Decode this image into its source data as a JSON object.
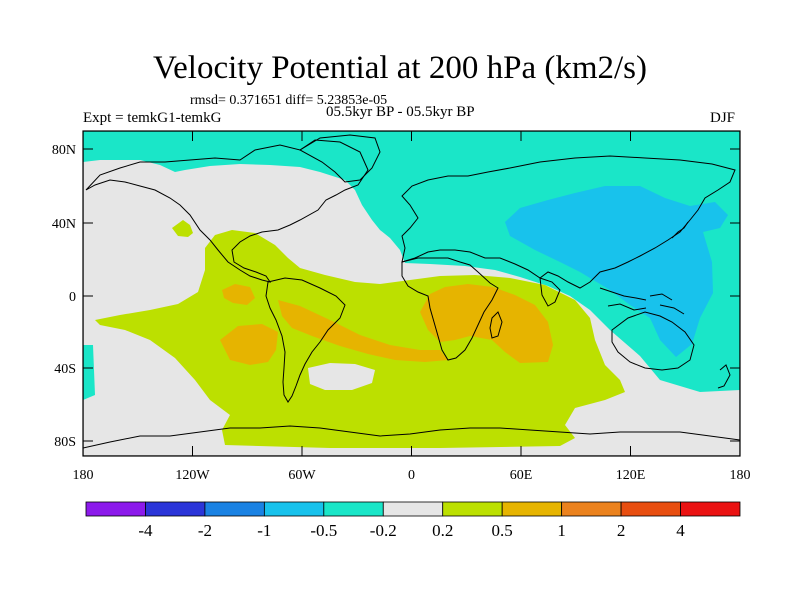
{
  "title": "Velocity Potential at 200 hPa (km2/s)",
  "stats": "rmsd= 0.371651 diff= 5.23853e-05",
  "experiment": "Expt = temkG1-temkG",
  "period": "05.5kyr BP - 05.5kyr BP",
  "season": "DJF",
  "lat_labels": [
    "80N",
    "40N",
    "0",
    "40S",
    "80S"
  ],
  "lon_labels": [
    "180",
    "120W",
    "60W",
    "0",
    "60E",
    "120E",
    "180"
  ],
  "colorbar": {
    "colors": [
      "#8c1aeb",
      "#2b35d8",
      "#1a82e3",
      "#18c2ec",
      "#1ae6c8",
      "#e6e6e6",
      "#bce000",
      "#e6b400",
      "#eb821e",
      "#e84e10",
      "#ea1212"
    ],
    "labels": [
      "-4",
      "-2",
      "-1",
      "-0.5",
      "-0.2",
      "0.2",
      "0.5",
      "1",
      "2",
      "4"
    ]
  }
}
